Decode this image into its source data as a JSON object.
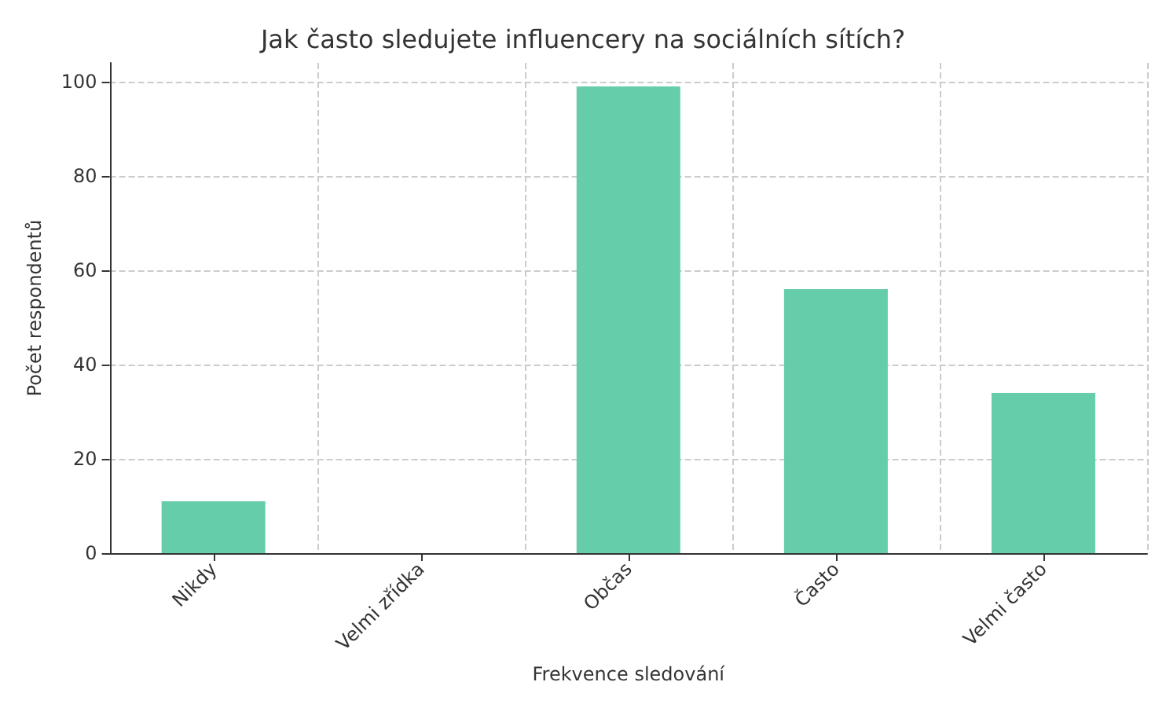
{
  "chart_data": {
    "type": "bar",
    "title": "Jak často sledujete influencery na sociálních sítích?",
    "xlabel": "Frekvence sledování",
    "ylabel": "Počet respondentů",
    "categories": [
      "Nikdy",
      "Velmi zřídka",
      "Občas",
      "Často",
      "Velmi často"
    ],
    "values": [
      11,
      0,
      99,
      56,
      34
    ],
    "color": "#66cdaa",
    "ylim": [
      0,
      104
    ],
    "yticks": [
      0,
      20,
      40,
      60,
      80,
      100
    ],
    "grid": true
  }
}
